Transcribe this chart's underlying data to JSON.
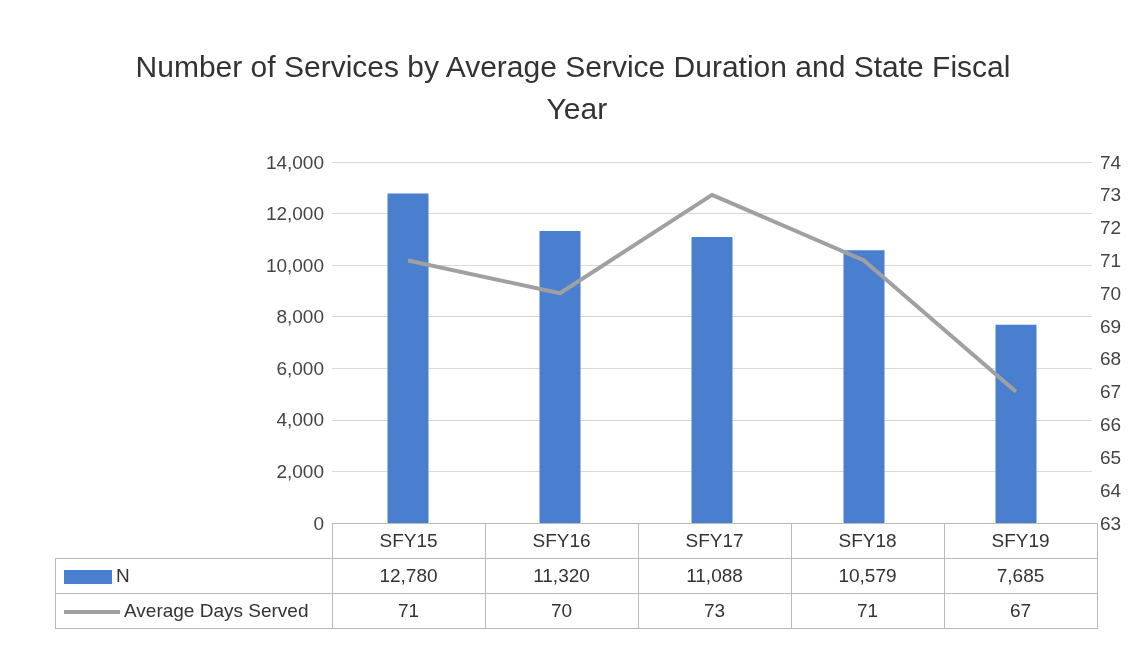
{
  "chart_data": {
    "type": "bar",
    "title": "Number of Services by Average Service Duration and State Fiscal Year",
    "categories": [
      "SFY15",
      "SFY16",
      "SFY17",
      "SFY18",
      "SFY19"
    ],
    "series": [
      {
        "name": "N",
        "color": "#4a7fd0",
        "values": [
          12780,
          11320,
          11088,
          10579,
          7685
        ],
        "value_labels": [
          "12,780",
          "11,320",
          "11,088",
          "10,579",
          "7,685"
        ]
      },
      {
        "name": "Average Days Served",
        "type": "line",
        "axis": "y2",
        "color": "#a0a0a0",
        "values": [
          71,
          70,
          73,
          71,
          67
        ]
      }
    ],
    "ylim": [
      0,
      14000
    ],
    "yticks": [
      0,
      {
        "value": 2000,
        "label": "2,000"
      },
      {
        "value": 4000,
        "label": "4,000"
      },
      {
        "value": 6000,
        "label": "6,000"
      },
      {
        "value": 8000,
        "label": "8,000"
      },
      {
        "value": 10000,
        "label": "10,000"
      },
      {
        "value": 12000,
        "label": "12,000"
      },
      {
        "value": 14000,
        "label": "14,000"
      }
    ],
    "y2lim": [
      63,
      74
    ],
    "y2ticks": [
      63,
      64,
      65,
      66,
      67,
      68,
      69,
      70,
      71,
      72,
      73,
      74
    ],
    "grid": "y",
    "legend": "bottom",
    "marker": "none",
    "line_style": "solid",
    "data_labels": true
  }
}
